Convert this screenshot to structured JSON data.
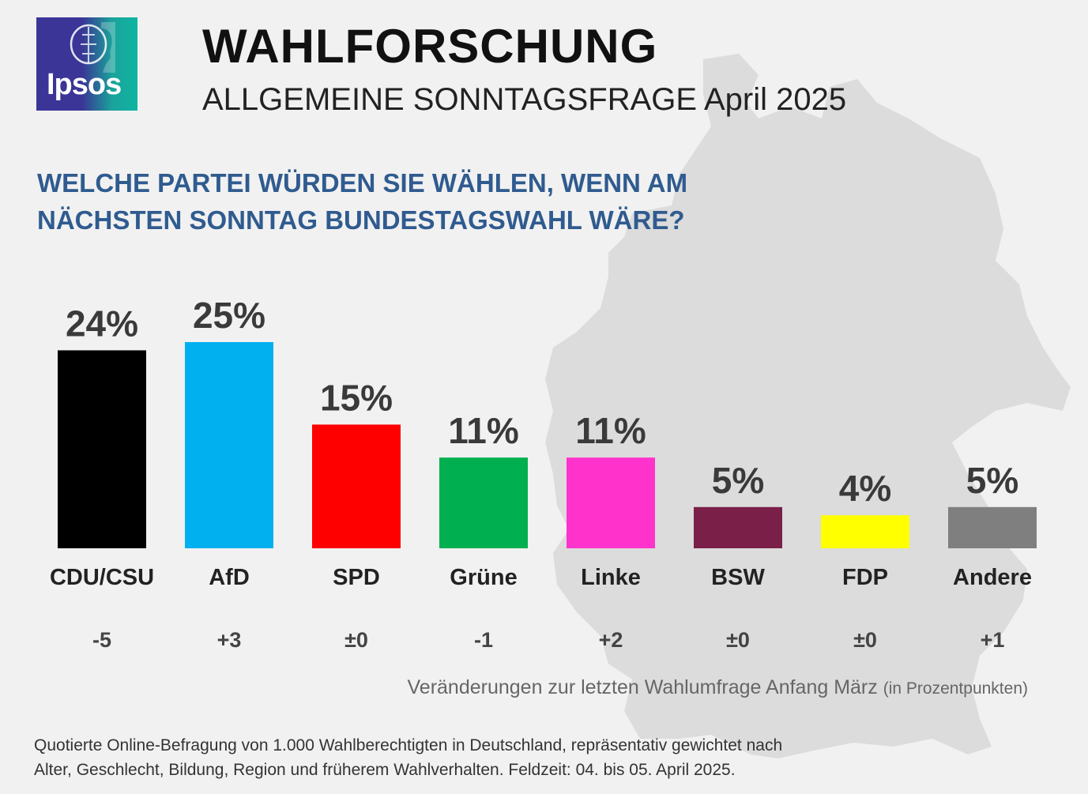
{
  "header": {
    "logo_text": "Ipsos",
    "title": "WAHLFORSCHUNG",
    "subtitle": "ALLGEMEINE SONNTAGSFRAGE April 2025",
    "question": "WELCHE PARTEI WÜRDEN SIE WÄHLEN, WENN AM NÄCHSTEN SONNTAG BUNDESTAGSWAHL WÄRE?"
  },
  "chart_data": {
    "type": "bar",
    "categories": [
      "CDU/CSU",
      "AfD",
      "SPD",
      "Grüne",
      "Linke",
      "BSW",
      "FDP",
      "Andere"
    ],
    "values": [
      24,
      25,
      15,
      11,
      11,
      5,
      4,
      5
    ],
    "value_labels": [
      "24%",
      "25%",
      "15%",
      "11%",
      "11%",
      "5%",
      "4%",
      "5%"
    ],
    "changes": [
      "-5",
      "+3",
      "±0",
      "-1",
      "+2",
      "±0",
      "±0",
      "+1"
    ],
    "colors": [
      "#000000",
      "#00b0ef",
      "#fe0000",
      "#00b050",
      "#ff33cc",
      "#7a2048",
      "#ffff00",
      "#7f7f7f"
    ],
    "ylim": [
      0,
      25
    ],
    "grid": false
  },
  "change_note": {
    "main": "Veränderungen zur letzten Wahlumfrage Anfang März",
    "unit": "(in Prozentpunkten)"
  },
  "footnote": {
    "line1": "Quotierte Online-Befragung von 1.000 Wahlberechtigten in Deutschland, repräsentativ gewichtet nach",
    "line2": "Alter, Geschlecht, Bildung, Region und früherem Wahlverhalten. Feldzeit: 04. bis 05. April 2025."
  }
}
